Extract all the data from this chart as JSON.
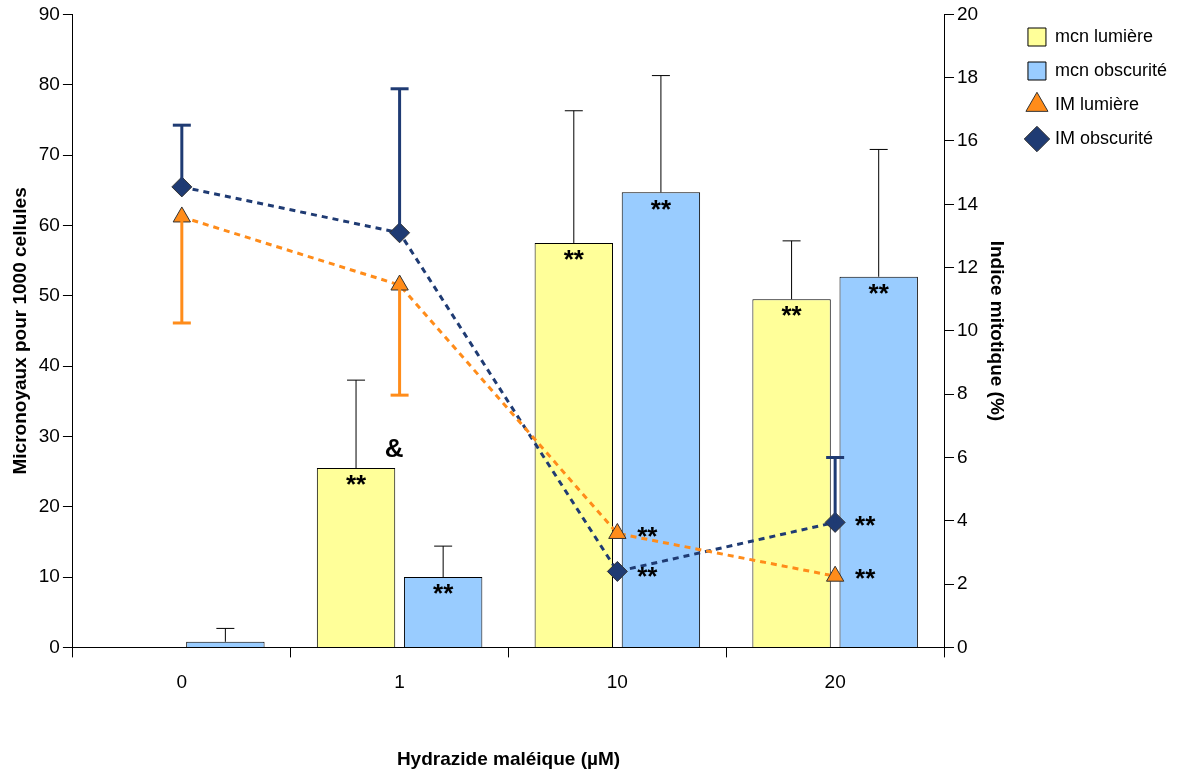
{
  "chart_data": {
    "type": "bar",
    "xlabel": "Hydrazide maléique (µM)",
    "ylabel": "Micronoyaux pour 1000 cellules",
    "y2label": "Indice mitotique (%)",
    "categories": [
      "0",
      "1",
      "10",
      "20"
    ],
    "series": [
      {
        "name": "mcn lumière",
        "color": "#ffff99",
        "values": [
          0,
          25.5,
          57.5,
          49.5
        ],
        "errors": [
          null,
          [
            25.5,
            38
          ],
          [
            57.5,
            76.3
          ],
          [
            49.5,
            57.8
          ]
        ],
        "value_labels": [
          null,
          "**",
          "**",
          "**"
        ]
      },
      {
        "name": "mcn obscurité",
        "color": "#99ccff",
        "values": [
          0.8,
          10,
          64.7,
          52.7
        ],
        "errors": [
          [
            0.8,
            2.7
          ],
          [
            10,
            14.4
          ],
          [
            64.7,
            81.3
          ],
          [
            52.7,
            70.8
          ]
        ],
        "value_labels": [
          null,
          "**",
          "**",
          "**"
        ]
      },
      {
        "name": "IM lumière",
        "type": "line",
        "axis": "y2",
        "color": "#ff8c1a",
        "marker": "triangle",
        "line_style": "dashed",
        "values": [
          13.6,
          11.45,
          3.6,
          2.25
        ],
        "errors": [
          [
            10.25,
            13.6
          ],
          [
            7.97,
            11.45
          ],
          null,
          null
        ],
        "value_labels": [
          null,
          null,
          "**",
          "**"
        ]
      },
      {
        "name": "IM obscurité",
        "type": "line",
        "axis": "y2",
        "color": "#1f3b73",
        "marker": "diamond",
        "line_style": "dashed",
        "values": [
          14.55,
          13.1,
          2.4,
          3.95
        ],
        "errors": [
          [
            14.55,
            16.5
          ],
          [
            13.1,
            17.65
          ],
          null,
          [
            3.95,
            6.0
          ]
        ],
        "value_labels": [
          null,
          null,
          "**",
          "**"
        ]
      }
    ],
    "ylim": [
      0,
      90
    ],
    "yticks": [
      0,
      10,
      20,
      30,
      40,
      50,
      60,
      70,
      80,
      90
    ],
    "y2lim": [
      0,
      20
    ],
    "y2ticks": [
      0,
      2,
      4,
      6,
      8,
      10,
      12,
      14,
      16,
      18,
      20
    ],
    "grid": false,
    "legend": "top right",
    "annotations": [
      "&"
    ]
  }
}
